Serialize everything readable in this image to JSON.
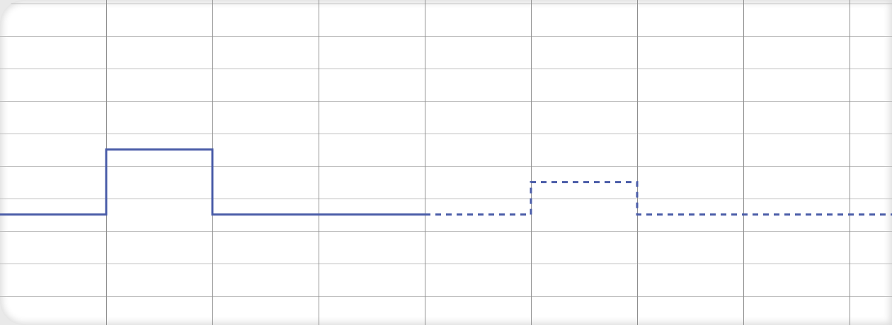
{
  "chart_data": {
    "type": "line",
    "title": "",
    "xlabel": "",
    "ylabel": "",
    "grid": true,
    "legend": "none",
    "xlim": [
      0,
      8.4
    ],
    "ylim": [
      -3.4,
      6.6
    ],
    "x_gridlines": [
      1,
      2,
      3,
      4,
      5,
      6,
      7,
      8
    ],
    "y_gridlines": [
      -2.5,
      -1.5,
      -0.5,
      0.5,
      1.5,
      2.5,
      3.5,
      4.5,
      5.5,
      6.5
    ],
    "series": [
      {
        "style": "solid",
        "color": "#4a5ca8",
        "points": [
          [
            0,
            0
          ],
          [
            1,
            0
          ],
          [
            1,
            2
          ],
          [
            2,
            2
          ],
          [
            2,
            0
          ],
          [
            4,
            0
          ]
        ]
      },
      {
        "style": "dashed",
        "color": "#4a5ca8",
        "points": [
          [
            4,
            0
          ],
          [
            5,
            0
          ],
          [
            5,
            1
          ],
          [
            6,
            1
          ],
          [
            6,
            0
          ],
          [
            8.4,
            0
          ]
        ]
      }
    ],
    "colors": {
      "grid_horizontal": "#bdbdbd",
      "grid_vertical": "#8f8f8f",
      "background": "#ffffff"
    }
  }
}
